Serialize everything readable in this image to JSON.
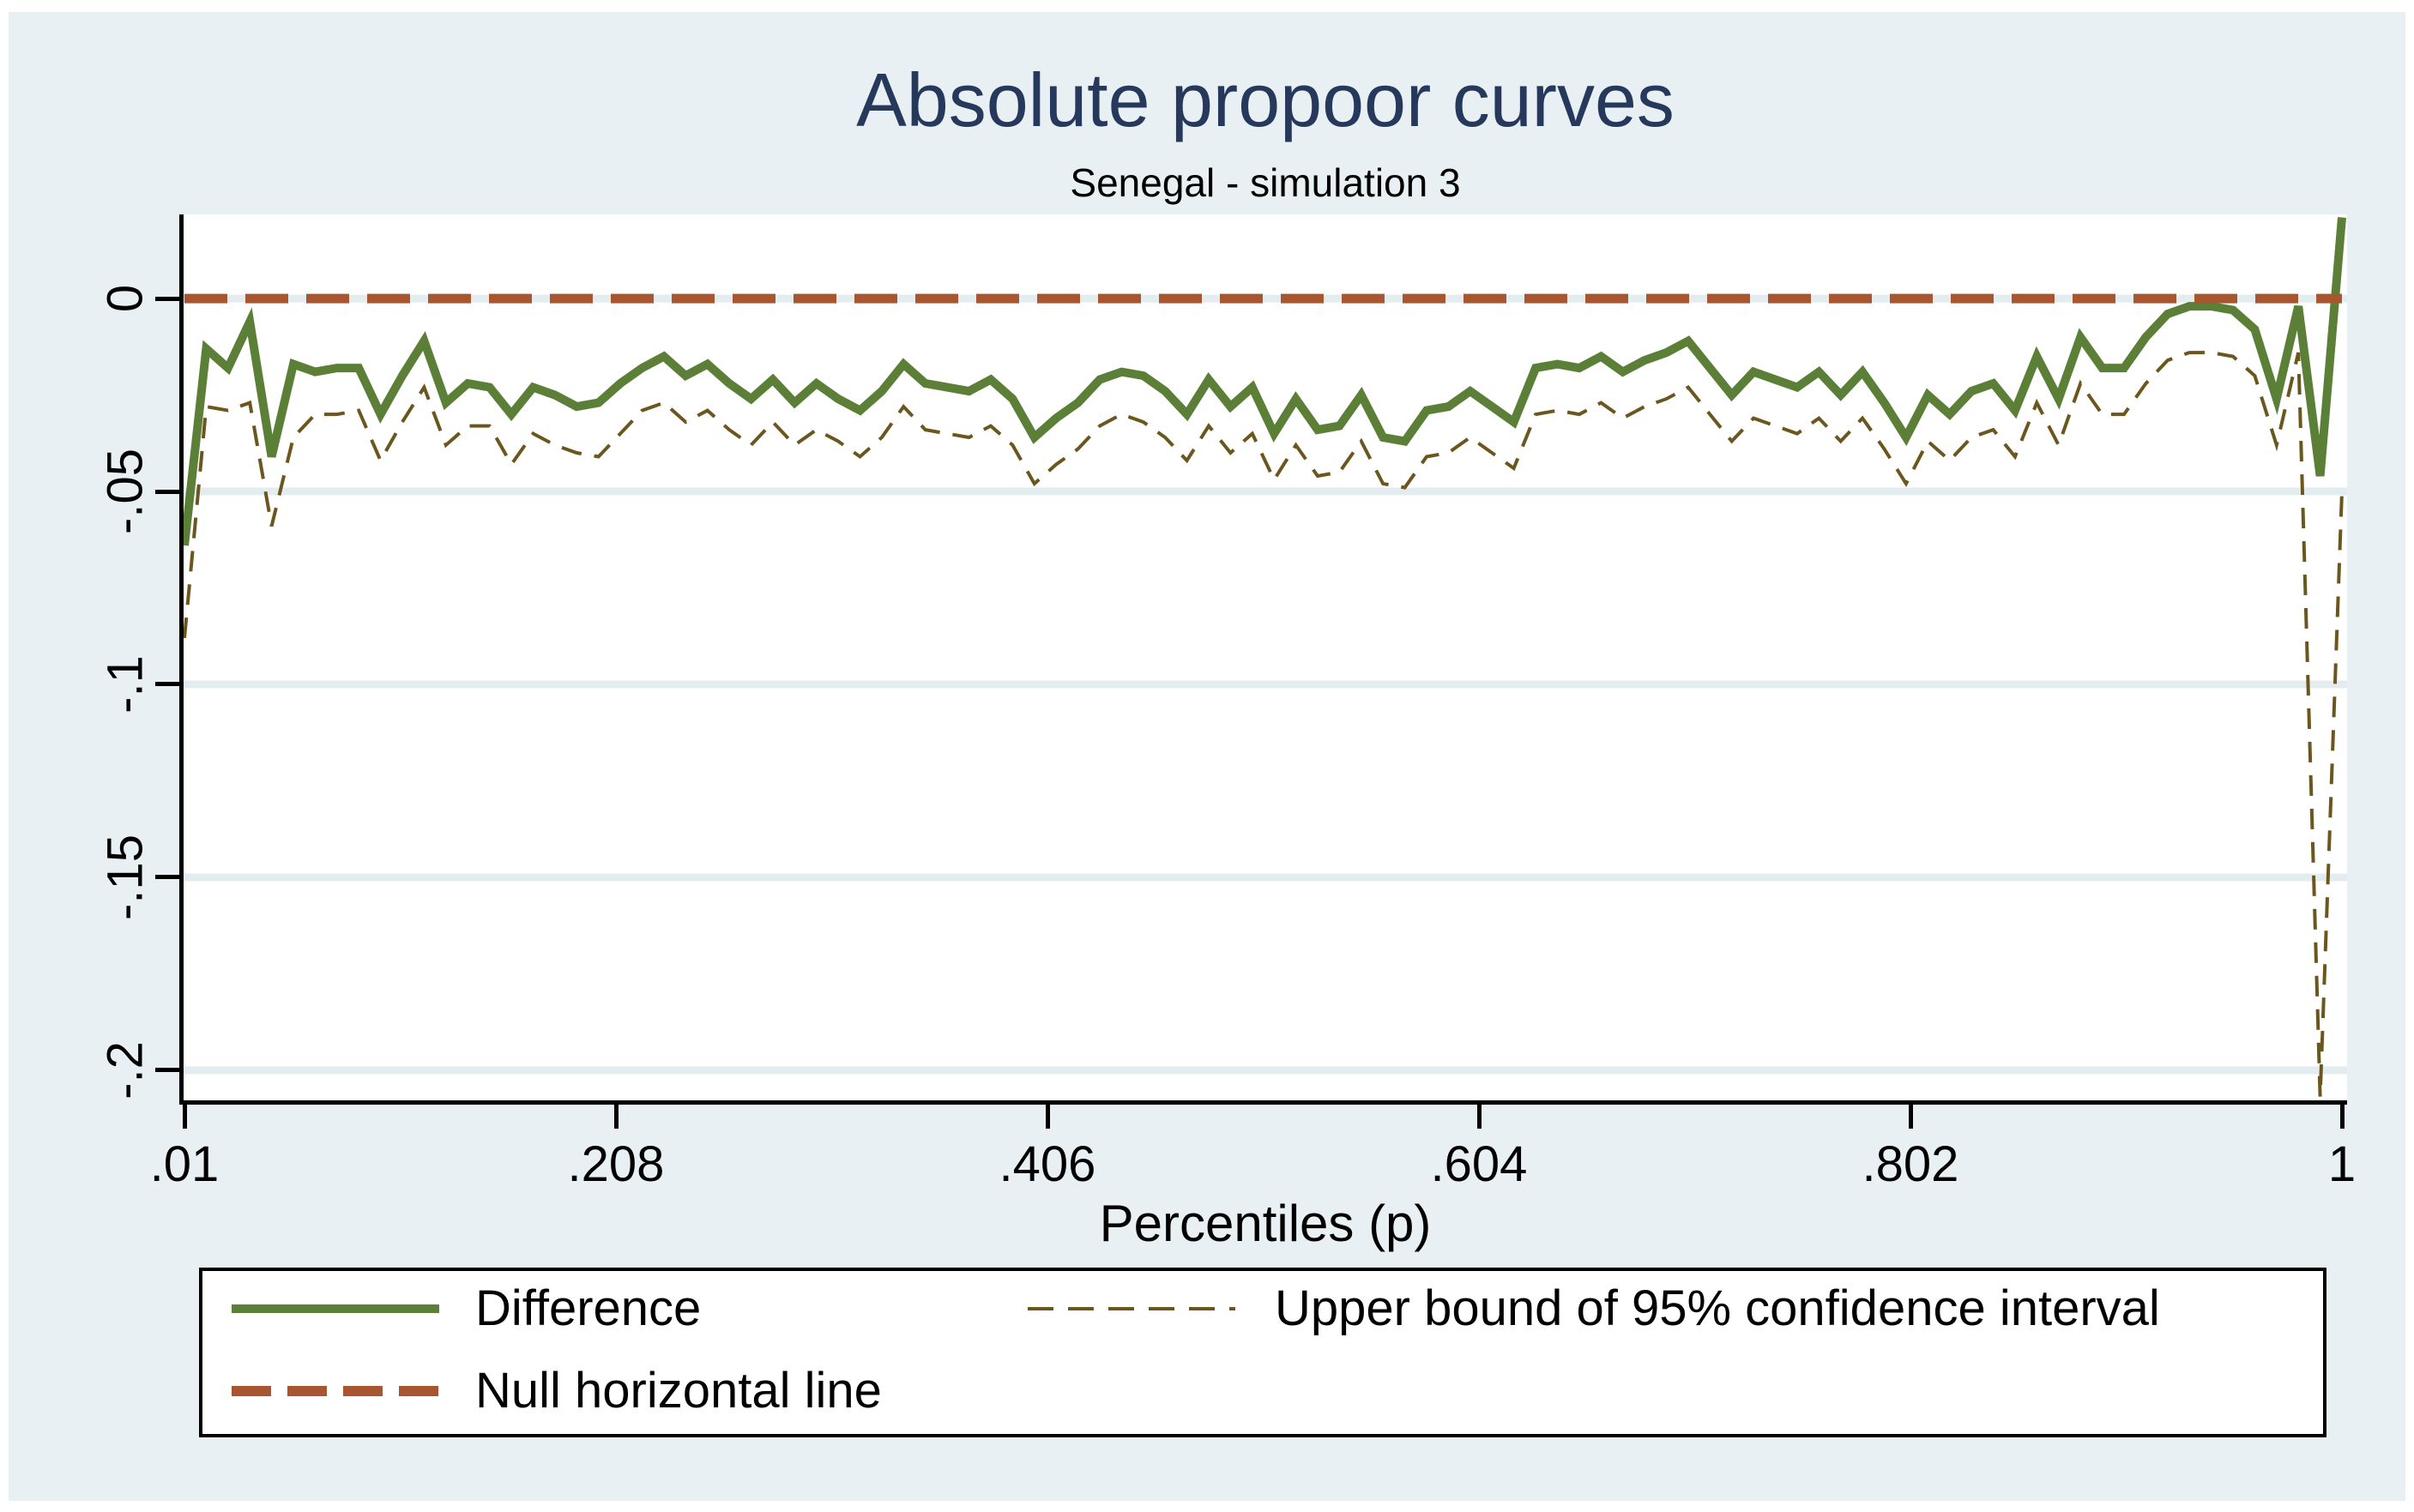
{
  "title": "Absolute propoor curves",
  "subtitle": "Senegal - simulation 3",
  "x_axis_title": "Percentiles (p)",
  "legend": {
    "difference_label": "Difference",
    "upper_bound_label": "Upper bound of 95% confidence interval",
    "null_line_label": "Null horizontal line"
  },
  "colors": {
    "figure_background": "#e9f0f3",
    "plot_background": "#ffffff",
    "gridline": "#e3edf0",
    "title": "#26395c",
    "difference_line": "#5c7f38",
    "upper_bound_line": "#6b571e",
    "null_line": "#a8562f",
    "axis": "#000000"
  },
  "chart_data": {
    "type": "line",
    "title": "Absolute propoor curves",
    "subtitle": "Senegal - simulation 3",
    "xlabel": "Percentiles (p)",
    "ylabel": "",
    "grid": "horizontal",
    "legend_position": "bottom",
    "xlim": [
      0.01,
      1.0
    ],
    "ylim": [
      -0.2078,
      0.0218
    ],
    "xticks": [
      {
        "v": 0.01,
        "label": ".01"
      },
      {
        "v": 0.208,
        "label": ".208"
      },
      {
        "v": 0.406,
        "label": ".406"
      },
      {
        "v": 0.604,
        "label": ".604"
      },
      {
        "v": 0.802,
        "label": ".802"
      },
      {
        "v": 1.0,
        "label": "1"
      }
    ],
    "yticks": [
      {
        "v": 0,
        "label": "0"
      },
      {
        "v": -0.05,
        "label": "-.05"
      },
      {
        "v": -0.1,
        "label": "-.1"
      },
      {
        "v": -0.15,
        "label": "-.15"
      },
      {
        "v": -0.2,
        "label": "-.2"
      }
    ],
    "x": [
      0.01,
      0.02,
      0.03,
      0.04,
      0.05,
      0.06,
      0.07,
      0.08,
      0.09,
      0.1,
      0.11,
      0.12,
      0.13,
      0.14,
      0.15,
      0.16,
      0.17,
      0.18,
      0.19,
      0.2,
      0.21,
      0.22,
      0.23,
      0.24,
      0.25,
      0.26,
      0.27,
      0.28,
      0.29,
      0.3,
      0.31,
      0.32,
      0.33,
      0.34,
      0.35,
      0.36,
      0.37,
      0.38,
      0.39,
      0.4,
      0.41,
      0.42,
      0.43,
      0.44,
      0.45,
      0.46,
      0.47,
      0.48,
      0.49,
      0.5,
      0.51,
      0.52,
      0.53,
      0.54,
      0.55,
      0.56,
      0.57,
      0.58,
      0.59,
      0.6,
      0.61,
      0.62,
      0.63,
      0.64,
      0.65,
      0.66,
      0.67,
      0.68,
      0.69,
      0.7,
      0.71,
      0.72,
      0.73,
      0.74,
      0.75,
      0.76,
      0.77,
      0.78,
      0.79,
      0.8,
      0.81,
      0.82,
      0.83,
      0.84,
      0.85,
      0.86,
      0.87,
      0.88,
      0.89,
      0.9,
      0.91,
      0.92,
      0.93,
      0.94,
      0.95,
      0.96,
      0.97,
      0.98,
      0.99,
      1.0
    ],
    "series": [
      {
        "name": "Upper bound of 95% confidence interval",
        "color": "#6b571e",
        "style": "dashed",
        "width": 4,
        "dash": "24 15",
        "y": [
          -0.088,
          -0.028,
          -0.029,
          -0.027,
          -0.059,
          -0.036,
          -0.03,
          -0.03,
          -0.029,
          -0.042,
          -0.032,
          -0.023,
          -0.038,
          -0.033,
          -0.033,
          -0.043,
          -0.035,
          -0.038,
          -0.04,
          -0.041,
          -0.035,
          -0.029,
          -0.027,
          -0.032,
          -0.029,
          -0.034,
          -0.038,
          -0.032,
          -0.038,
          -0.034,
          -0.037,
          -0.041,
          -0.036,
          -0.028,
          -0.034,
          -0.035,
          -0.036,
          -0.033,
          -0.038,
          -0.048,
          -0.043,
          -0.039,
          -0.033,
          -0.03,
          -0.032,
          -0.036,
          -0.042,
          -0.033,
          -0.04,
          -0.035,
          -0.047,
          -0.038,
          -0.046,
          -0.045,
          -0.037,
          -0.048,
          -0.049,
          -0.041,
          -0.04,
          -0.036,
          -0.04,
          -0.044,
          -0.03,
          -0.029,
          -0.03,
          -0.027,
          -0.031,
          -0.028,
          -0.026,
          -0.023,
          -0.03,
          -0.037,
          -0.031,
          -0.033,
          -0.035,
          -0.031,
          -0.037,
          -0.031,
          -0.039,
          -0.048,
          -0.037,
          -0.042,
          -0.036,
          -0.034,
          -0.041,
          -0.027,
          -0.038,
          -0.022,
          -0.03,
          -0.03,
          -0.022,
          -0.016,
          -0.014,
          -0.014,
          -0.015,
          -0.02,
          -0.038,
          -0.014,
          -0.207,
          -0.05
        ]
      },
      {
        "name": "Difference",
        "color": "#5c7f38",
        "style": "solid",
        "width": 10,
        "y": [
          -0.064,
          -0.013,
          -0.018,
          -0.006,
          -0.041,
          -0.017,
          -0.019,
          -0.018,
          -0.018,
          -0.03,
          -0.02,
          -0.011,
          -0.027,
          -0.022,
          -0.023,
          -0.03,
          -0.023,
          -0.025,
          -0.028,
          -0.027,
          -0.022,
          -0.018,
          -0.015,
          -0.02,
          -0.017,
          -0.022,
          -0.026,
          -0.021,
          -0.027,
          -0.022,
          -0.026,
          -0.029,
          -0.024,
          -0.017,
          -0.022,
          -0.023,
          -0.024,
          -0.021,
          -0.026,
          -0.036,
          -0.031,
          -0.027,
          -0.021,
          -0.019,
          -0.02,
          -0.024,
          -0.03,
          -0.021,
          -0.028,
          -0.023,
          -0.035,
          -0.026,
          -0.034,
          -0.033,
          -0.025,
          -0.036,
          -0.037,
          -0.029,
          -0.028,
          -0.024,
          -0.028,
          -0.032,
          -0.018,
          -0.017,
          -0.018,
          -0.015,
          -0.019,
          -0.016,
          -0.014,
          -0.011,
          -0.018,
          -0.025,
          -0.019,
          -0.021,
          -0.023,
          -0.019,
          -0.025,
          -0.019,
          -0.027,
          -0.036,
          -0.025,
          -0.03,
          -0.024,
          -0.022,
          -0.029,
          -0.015,
          -0.026,
          -0.01,
          -0.018,
          -0.018,
          -0.01,
          -0.004,
          -0.002,
          -0.002,
          -0.003,
          -0.008,
          -0.026,
          -0.002,
          -0.046,
          0.021
        ]
      },
      {
        "name": "Null horizontal line",
        "color": "#a8562f",
        "style": "dashed",
        "width": 11,
        "dash": "50 21",
        "x": [
          0.01,
          1.0
        ],
        "y": [
          0,
          0
        ]
      }
    ]
  }
}
